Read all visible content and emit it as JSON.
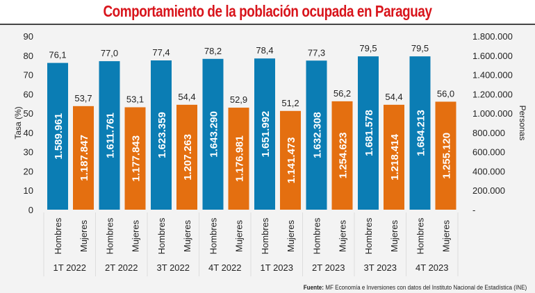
{
  "title": "Comportamiento de la población ocupada en Paraguay",
  "footer": {
    "label": "Fuente:",
    "text": "MF Economía e Inversiones con datos del Instituto Nacional de Estadística (INE)"
  },
  "chart_data": {
    "type": "bar",
    "categories": [
      "1T 2022",
      "2T 2022",
      "3T 2022",
      "4T 2022",
      "1T 2023",
      "2T 2023",
      "3T 2023",
      "4T 2023"
    ],
    "subcategories": [
      "Hombres",
      "Mujeres"
    ],
    "ylabel": "Tasa (%)",
    "y2label": "Personas",
    "ylim": [
      0,
      90
    ],
    "yticks": [
      "0",
      "10",
      "20",
      "30",
      "40",
      "50",
      "60",
      "70",
      "80",
      "90"
    ],
    "y2lim": [
      0,
      1800000
    ],
    "y2ticks": [
      "-",
      "200.000",
      "400.000",
      "600.000",
      "800.000",
      "1.000.000",
      "1.200.000",
      "1.400.000",
      "1.600.000",
      "1.800.000"
    ],
    "colors": {
      "Hombres": "#0b7db4",
      "Mujeres": "#e46f10"
    },
    "series": [
      {
        "name": "Hombres",
        "rate": [
          76.1,
          77.0,
          77.4,
          78.2,
          78.4,
          77.3,
          79.5,
          79.5
        ],
        "rate_labels": [
          "76,1",
          "77,0",
          "77,4",
          "78,2",
          "78,4",
          "77,3",
          "79,5",
          "79,5"
        ],
        "persons_labels": [
          "1.589.961",
          "1.611.761",
          "1.623.359",
          "1.643.290",
          "1.651.992",
          "1.632.308",
          "1.681.578",
          "1.684.213"
        ]
      },
      {
        "name": "Mujeres",
        "rate": [
          53.7,
          53.1,
          54.4,
          52.9,
          51.2,
          56.2,
          54.4,
          56.0
        ],
        "rate_labels": [
          "53,7",
          "53,1",
          "54,4",
          "52,9",
          "51,2",
          "56,2",
          "54,4",
          "56,0"
        ],
        "persons_labels": [
          "1.187.847",
          "1.177.843",
          "1.207.263",
          "1.176.981",
          "1.141.473",
          "1.254.623",
          "1.218.414",
          "1.255.120"
        ]
      }
    ]
  }
}
